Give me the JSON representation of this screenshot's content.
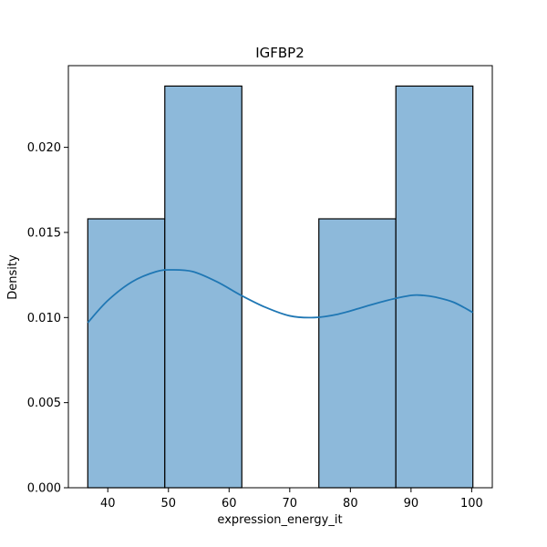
{
  "chart_data": {
    "type": "bar",
    "title": "IGFBP2",
    "xlabel": "expression_energy_it",
    "ylabel": "Density",
    "xlim": [
      33.5,
      103.4
    ],
    "ylim": [
      0,
      0.0248
    ],
    "xticks": [
      40,
      50,
      60,
      70,
      80,
      90,
      100
    ],
    "xtick_labels": [
      "40",
      "50",
      "60",
      "70",
      "80",
      "90",
      "100"
    ],
    "yticks": [
      0,
      0.005,
      0.01,
      0.015,
      0.02
    ],
    "ytick_labels": [
      "0.000",
      "0.005",
      "0.010",
      "0.015",
      "0.020"
    ],
    "bins": [
      {
        "x0": 36.7,
        "x1": 49.4,
        "density": 0.0158
      },
      {
        "x0": 49.4,
        "x1": 62.1,
        "density": 0.0236
      },
      {
        "x0": 62.1,
        "x1": 74.8,
        "density": 0.0
      },
      {
        "x0": 74.8,
        "x1": 87.5,
        "density": 0.0158
      },
      {
        "x0": 87.5,
        "x1": 100.2,
        "density": 0.0236
      }
    ],
    "kde": {
      "x": [
        36.7,
        40,
        44,
        48,
        50.5,
        54,
        58,
        62,
        66,
        70,
        74,
        78,
        82,
        86,
        90,
        92,
        94,
        97,
        100.2
      ],
      "y": [
        0.0097,
        0.011,
        0.0121,
        0.0127,
        0.0128,
        0.0127,
        0.0121,
        0.0113,
        0.0106,
        0.0101,
        0.01,
        0.0102,
        0.0106,
        0.011,
        0.0113,
        0.0113,
        0.0112,
        0.0109,
        0.0103
      ]
    },
    "bar_fill": "#8db9da",
    "bar_stroke": "#000000",
    "kde_color": "#1f77b4",
    "grid": false,
    "legend": "none"
  }
}
